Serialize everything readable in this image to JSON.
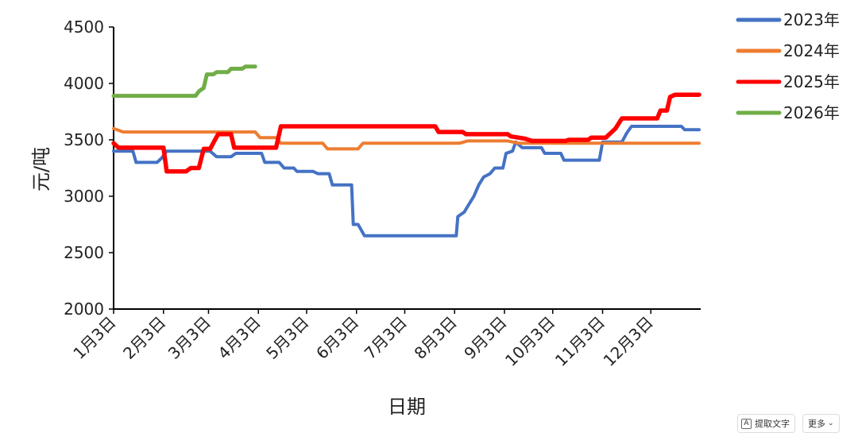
{
  "chart_data": {
    "type": "line",
    "xlabel": "日期",
    "ylabel": "元/吨",
    "ylim": [
      2000,
      4500
    ],
    "yticks": [
      2000,
      2500,
      3000,
      3500,
      4000,
      4500
    ],
    "xlim": [
      0,
      365
    ],
    "xtick_labels": [
      "1月3日",
      "2月3日",
      "3月3日",
      "4月3日",
      "5月3日",
      "6月3日",
      "7月3日",
      "8月3日",
      "9月3日",
      "10月3日",
      "11月3日",
      "12月3日"
    ],
    "xtick_days": [
      0,
      31,
      59,
      90,
      120,
      151,
      181,
      212,
      243,
      273,
      304,
      334
    ],
    "grid": false,
    "legend_position": "right",
    "series": [
      {
        "name": "2023年",
        "color": "#4472C4",
        "points": [
          [
            0,
            3400
          ],
          [
            12,
            3400
          ],
          [
            14,
            3300
          ],
          [
            27,
            3300
          ],
          [
            30,
            3340
          ],
          [
            33,
            3400
          ],
          [
            60,
            3400
          ],
          [
            64,
            3350
          ],
          [
            73,
            3350
          ],
          [
            76,
            3380
          ],
          [
            92,
            3380
          ],
          [
            94,
            3300
          ],
          [
            103,
            3300
          ],
          [
            106,
            3250
          ],
          [
            112,
            3250
          ],
          [
            114,
            3220
          ],
          [
            124,
            3220
          ],
          [
            127,
            3200
          ],
          [
            134,
            3200
          ],
          [
            136,
            3100
          ],
          [
            148,
            3100
          ],
          [
            149,
            2750
          ],
          [
            152,
            2750
          ],
          [
            156,
            2650
          ],
          [
            213,
            2650
          ],
          [
            214,
            2820
          ],
          [
            218,
            2860
          ],
          [
            221,
            2930
          ],
          [
            224,
            3000
          ],
          [
            227,
            3100
          ],
          [
            230,
            3170
          ],
          [
            234,
            3200
          ],
          [
            237,
            3250
          ],
          [
            242,
            3250
          ],
          [
            244,
            3380
          ],
          [
            248,
            3400
          ],
          [
            250,
            3480
          ],
          [
            254,
            3430
          ],
          [
            266,
            3430
          ],
          [
            268,
            3380
          ],
          [
            278,
            3380
          ],
          [
            280,
            3320
          ],
          [
            302,
            3320
          ],
          [
            304,
            3480
          ],
          [
            316,
            3480
          ],
          [
            319,
            3560
          ],
          [
            322,
            3620
          ],
          [
            353,
            3620
          ],
          [
            355,
            3590
          ],
          [
            364,
            3590
          ]
        ]
      },
      {
        "name": "2024年",
        "color": "#ED7D31",
        "points": [
          [
            0,
            3600
          ],
          [
            6,
            3570
          ],
          [
            88,
            3570
          ],
          [
            91,
            3520
          ],
          [
            101,
            3520
          ],
          [
            104,
            3470
          ],
          [
            130,
            3470
          ],
          [
            133,
            3420
          ],
          [
            152,
            3420
          ],
          [
            155,
            3470
          ],
          [
            215,
            3470
          ],
          [
            220,
            3490
          ],
          [
            245,
            3490
          ],
          [
            252,
            3470
          ],
          [
            364,
            3470
          ]
        ]
      },
      {
        "name": "2025年",
        "color": "#FF0000",
        "points": [
          [
            0,
            3470
          ],
          [
            3,
            3430
          ],
          [
            31,
            3430
          ],
          [
            33,
            3220
          ],
          [
            45,
            3220
          ],
          [
            48,
            3250
          ],
          [
            53,
            3250
          ],
          [
            56,
            3420
          ],
          [
            60,
            3420
          ],
          [
            63,
            3500
          ],
          [
            65,
            3550
          ],
          [
            73,
            3550
          ],
          [
            75,
            3430
          ],
          [
            101,
            3430
          ],
          [
            104,
            3620
          ],
          [
            200,
            3620
          ],
          [
            202,
            3570
          ],
          [
            217,
            3570
          ],
          [
            219,
            3550
          ],
          [
            245,
            3550
          ],
          [
            247,
            3530
          ],
          [
            256,
            3510
          ],
          [
            260,
            3490
          ],
          [
            281,
            3490
          ],
          [
            283,
            3500
          ],
          [
            295,
            3500
          ],
          [
            297,
            3520
          ],
          [
            306,
            3520
          ],
          [
            309,
            3560
          ],
          [
            312,
            3600
          ],
          [
            316,
            3690
          ],
          [
            338,
            3690
          ],
          [
            340,
            3760
          ],
          [
            344,
            3760
          ],
          [
            346,
            3880
          ],
          [
            349,
            3900
          ],
          [
            364,
            3900
          ]
        ]
      },
      {
        "name": "2026年",
        "color": "#70AD47",
        "points": [
          [
            0,
            3890
          ],
          [
            51,
            3890
          ],
          [
            53,
            3930
          ],
          [
            56,
            3960
          ],
          [
            58,
            4080
          ],
          [
            62,
            4080
          ],
          [
            64,
            4100
          ],
          [
            71,
            4100
          ],
          [
            73,
            4130
          ],
          [
            80,
            4130
          ],
          [
            82,
            4150
          ],
          [
            88,
            4150
          ]
        ]
      }
    ]
  },
  "toolbar": {
    "extract_icon": "A",
    "extract_label": "提取文字",
    "more_label": "更多"
  }
}
